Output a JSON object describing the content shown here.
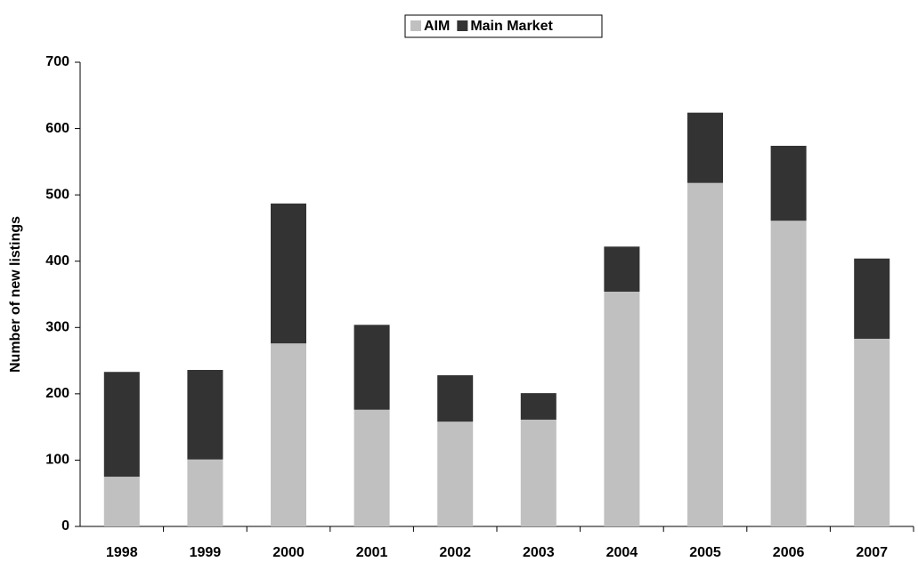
{
  "chart_data": {
    "type": "stacked_bar",
    "ylabel": "Number of new listings",
    "categories": [
      "1998",
      "1999",
      "2000",
      "2001",
      "2002",
      "2003",
      "2004",
      "2005",
      "2006",
      "2007"
    ],
    "series": [
      {
        "name": "AIM",
        "color": "#c0c0c0",
        "values": [
          75,
          101,
          276,
          176,
          158,
          161,
          354,
          518,
          461,
          283
        ]
      },
      {
        "name": "Main Market",
        "color": "#333333",
        "values": [
          158,
          135,
          211,
          128,
          70,
          40,
          68,
          106,
          113,
          121
        ]
      }
    ],
    "ylim": [
      0,
      700
    ],
    "yticks": [
      0,
      100,
      200,
      300,
      400,
      500,
      600,
      700
    ],
    "grid": false
  }
}
